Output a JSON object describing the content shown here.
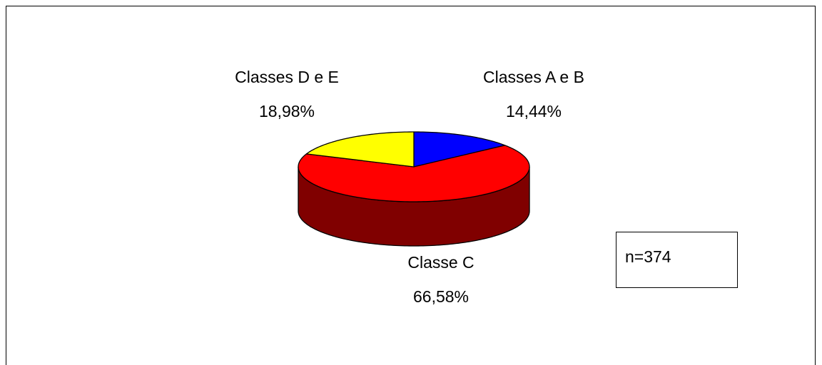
{
  "chart_data": {
    "type": "pie",
    "categories": [
      "Classes A e B",
      "Classe C",
      "Classes D e E"
    ],
    "values": [
      14.44,
      66.58,
      18.98
    ],
    "value_labels": [
      "14,44%",
      "66,58%",
      "18,98%"
    ],
    "colors": [
      "#0000ff",
      "#ff0000",
      "#ffff00"
    ],
    "annotation": "n=374"
  }
}
